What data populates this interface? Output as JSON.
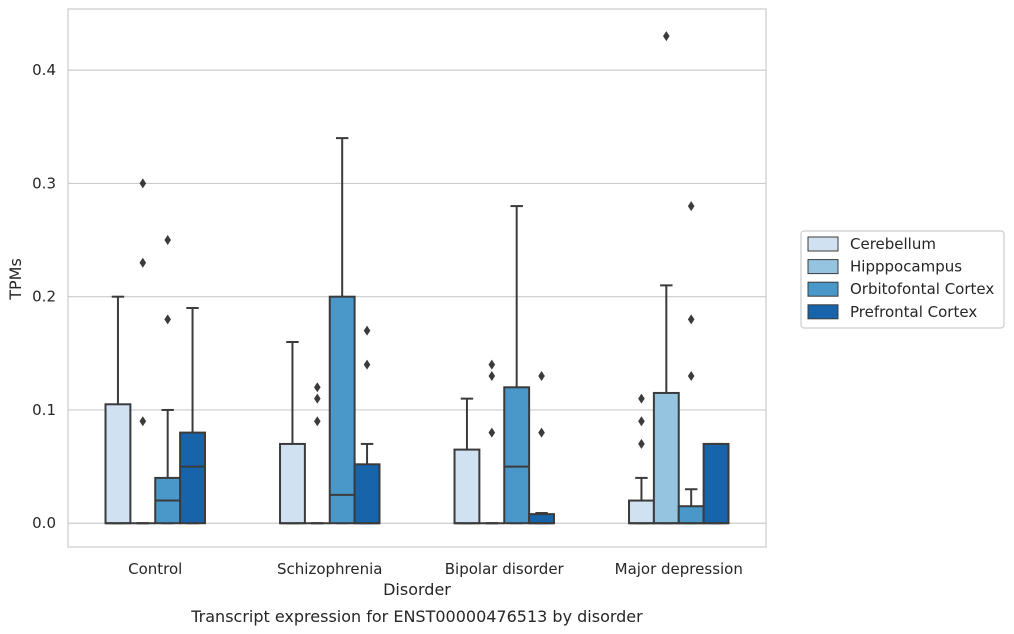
{
  "chart_data": {
    "type": "box",
    "caption": "Transcript expression for ENST00000476513 by disorder",
    "xlabel": "Disorder",
    "ylabel": "TPMs",
    "ylim": [
      -0.021,
      0.454
    ],
    "yticks": [
      0.0,
      0.1,
      0.2,
      0.3,
      0.4
    ],
    "ytick_labels": [
      "0.0",
      "0.1",
      "0.2",
      "0.3",
      "0.4"
    ],
    "grid": true,
    "legend_position": "right",
    "categories": [
      "Control",
      "Schizophrenia",
      "Bipolar disorder",
      "Major depression"
    ],
    "series": [
      {
        "name": "Cerebellum",
        "color": "#d0e1f2",
        "boxes": [
          {
            "whislo": 0.0,
            "q1": 0.0,
            "med": 0.0,
            "q3": 0.105,
            "whishi": 0.2,
            "fliers": []
          },
          {
            "whislo": 0.0,
            "q1": 0.0,
            "med": 0.0,
            "q3": 0.07,
            "whishi": 0.16,
            "fliers": []
          },
          {
            "whislo": 0.0,
            "q1": 0.0,
            "med": 0.0,
            "q3": 0.065,
            "whishi": 0.11,
            "fliers": []
          },
          {
            "whislo": 0.0,
            "q1": 0.0,
            "med": 0.0,
            "q3": 0.02,
            "whishi": 0.04,
            "fliers": [
              0.07,
              0.09,
              0.11
            ]
          }
        ]
      },
      {
        "name": "Hipppocampus",
        "color": "#94c4df",
        "boxes": [
          {
            "whislo": 0.0,
            "q1": 0.0,
            "med": 0.0,
            "q3": 0.0,
            "whishi": 0.0,
            "fliers": [
              0.09,
              0.23,
              0.3
            ]
          },
          {
            "whislo": 0.0,
            "q1": 0.0,
            "med": 0.0,
            "q3": 0.0,
            "whishi": 0.0,
            "fliers": [
              0.09,
              0.11,
              0.12
            ]
          },
          {
            "whislo": 0.0,
            "q1": 0.0,
            "med": 0.0,
            "q3": 0.0,
            "whishi": 0.0,
            "fliers": [
              0.08,
              0.13,
              0.14
            ]
          },
          {
            "whislo": 0.0,
            "q1": 0.0,
            "med": 0.0,
            "q3": 0.115,
            "whishi": 0.21,
            "fliers": [
              0.43
            ]
          }
        ]
      },
      {
        "name": "Orbitofontal Cortex",
        "color": "#4a98c9",
        "boxes": [
          {
            "whislo": 0.0,
            "q1": 0.0,
            "med": 0.02,
            "q3": 0.04,
            "whishi": 0.1,
            "fliers": [
              0.18,
              0.25
            ]
          },
          {
            "whislo": 0.0,
            "q1": 0.0,
            "med": 0.025,
            "q3": 0.2,
            "whishi": 0.34,
            "fliers": []
          },
          {
            "whislo": 0.0,
            "q1": 0.0,
            "med": 0.05,
            "q3": 0.12,
            "whishi": 0.28,
            "fliers": []
          },
          {
            "whislo": 0.0,
            "q1": 0.0,
            "med": 0.0,
            "q3": 0.015,
            "whishi": 0.03,
            "fliers": [
              0.13,
              0.18,
              0.28
            ]
          }
        ]
      },
      {
        "name": "Prefrontal Cortex",
        "color": "#1764ab",
        "boxes": [
          {
            "whislo": 0.0,
            "q1": 0.0,
            "med": 0.05,
            "q3": 0.08,
            "whishi": 0.19,
            "fliers": []
          },
          {
            "whislo": 0.0,
            "q1": 0.0,
            "med": 0.0,
            "q3": 0.052,
            "whishi": 0.07,
            "fliers": [
              0.14,
              0.17
            ]
          },
          {
            "whislo": 0.0,
            "q1": 0.0,
            "med": 0.0,
            "q3": 0.008,
            "whishi": 0.009,
            "fliers": [
              0.08,
              0.13
            ]
          },
          {
            "whislo": 0.0,
            "q1": 0.0,
            "med": 0.0,
            "q3": 0.07,
            "whishi": 0.07,
            "fliers": []
          }
        ]
      }
    ]
  }
}
